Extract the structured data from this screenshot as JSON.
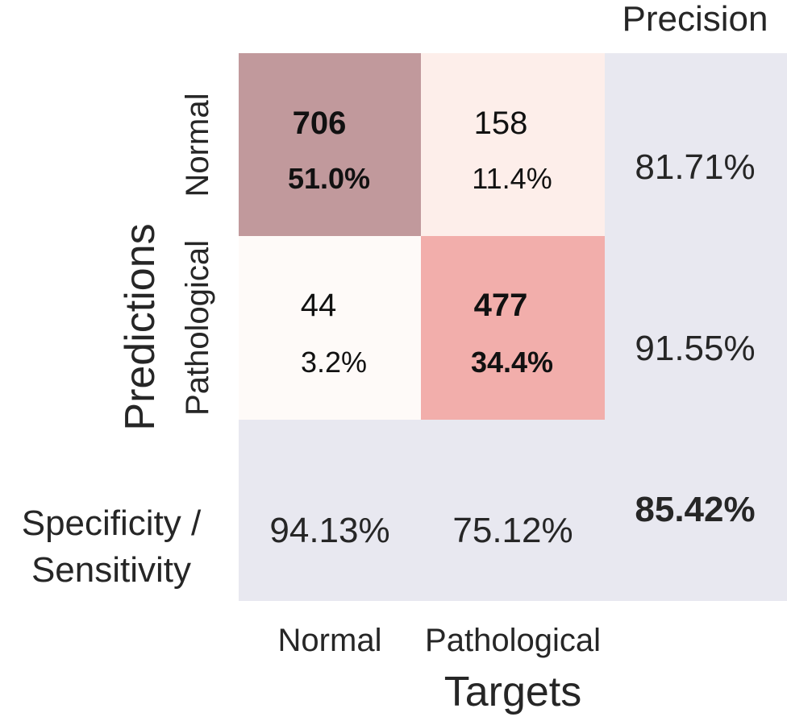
{
  "chart_data": {
    "type": "heatmap",
    "xlabel": "Targets",
    "ylabel": "Predictions",
    "x_categories": [
      "Normal",
      "Pathological"
    ],
    "y_categories": [
      "Normal",
      "Pathological"
    ],
    "matrix": [
      [
        {
          "count": "706",
          "percent": "51.0%"
        },
        {
          "count": "158",
          "percent": "11.4%"
        }
      ],
      [
        {
          "count": "44",
          "percent": "3.2%"
        },
        {
          "count": "477",
          "percent": "34.4%"
        }
      ]
    ],
    "precision_label": "Precision",
    "precision": [
      "81.71%",
      "91.55%"
    ],
    "sensitivity_label_line1": "Specificity /",
    "sensitivity_label_line2": "Sensitivity",
    "specificity_sensitivity": [
      "94.13%",
      "75.12%"
    ],
    "accuracy": "85.42%",
    "colors": {
      "tn": "#c1999c",
      "fp": "#fdeeea",
      "fn": "#fefaf8",
      "tp": "#f2aeab",
      "summary": "#e8e8f0",
      "text": "#262626"
    }
  }
}
